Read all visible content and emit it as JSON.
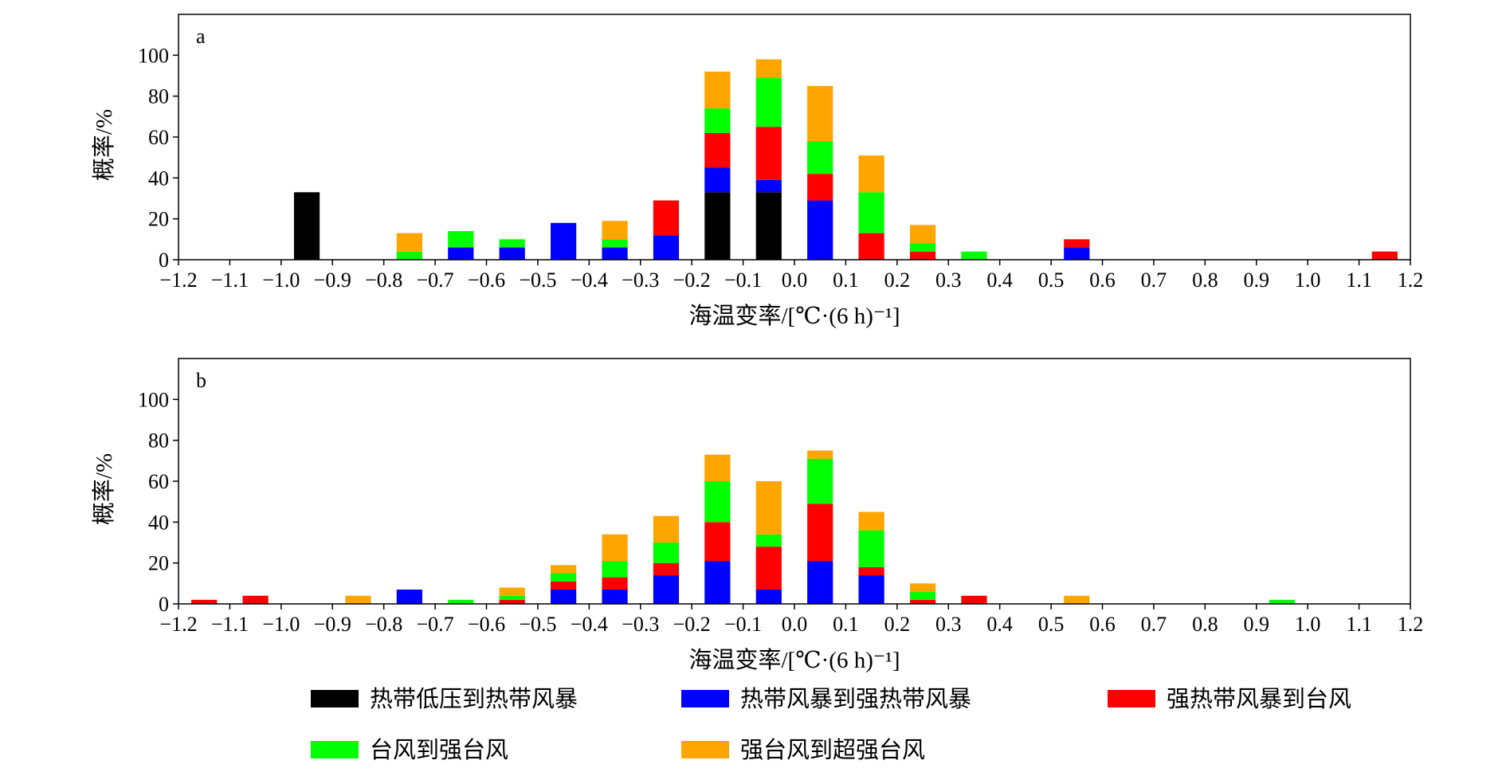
{
  "chart_data": [
    {
      "type": "bar",
      "stacked": true,
      "panel_label": "a",
      "xlabel": "海温变率/[℃·(6 h)⁻¹]",
      "ylabel": "概率/%",
      "xlim": [
        -1.2,
        1.2
      ],
      "ylim": [
        0,
        120
      ],
      "xticks": [
        "−1.2",
        "−1.1",
        "−1.0",
        "−0.9",
        "−0.8",
        "−0.7",
        "−0.6",
        "−0.5",
        "−0.4",
        "−0.3",
        "−0.2",
        "−0.1",
        "0.0",
        "0.1",
        "0.2",
        "0.3",
        "0.4",
        "0.5",
        "0.6",
        "0.7",
        "0.8",
        "0.9",
        "1.0",
        "1.1",
        "1.2"
      ],
      "yticks": [
        "0",
        "20",
        "40",
        "60",
        "80",
        "100"
      ],
      "x": [
        -1.15,
        -1.05,
        -0.95,
        -0.85,
        -0.75,
        -0.65,
        -0.55,
        -0.45,
        -0.35,
        -0.25,
        -0.15,
        -0.05,
        0.05,
        0.15,
        0.25,
        0.35,
        0.45,
        0.55,
        0.65,
        0.75,
        0.85,
        0.95,
        1.05,
        1.15
      ],
      "series": [
        {
          "name": "热带低压到热带风暴",
          "color": "#000000",
          "values": [
            0,
            0,
            33,
            0,
            0,
            0,
            0,
            0,
            0,
            0,
            33,
            33,
            0,
            0,
            0,
            0,
            0,
            0,
            0,
            0,
            0,
            0,
            0,
            0
          ]
        },
        {
          "name": "热带风暴到强热带风暴",
          "color": "#0000ff",
          "values": [
            0,
            0,
            0,
            0,
            0,
            6,
            6,
            18,
            6,
            12,
            12,
            6,
            29,
            0,
            0,
            0,
            0,
            6,
            0,
            0,
            0,
            0,
            0,
            0
          ]
        },
        {
          "name": "强热带风暴到台风",
          "color": "#ff0000",
          "values": [
            0,
            0,
            0,
            0,
            0,
            0,
            0,
            0,
            0,
            17,
            17,
            26,
            13,
            13,
            4,
            0,
            0,
            4,
            0,
            0,
            0,
            0,
            0,
            4
          ]
        },
        {
          "name": "台风到强台风",
          "color": "#00ff00",
          "values": [
            0,
            0,
            0,
            0,
            4,
            8,
            4,
            0,
            4,
            0,
            12,
            24,
            16,
            20,
            4,
            4,
            0,
            0,
            0,
            0,
            0,
            0,
            0,
            0
          ]
        },
        {
          "name": "强台风到超强台风",
          "color": "#ffa500",
          "values": [
            0,
            0,
            0,
            0,
            9,
            0,
            0,
            0,
            9,
            0,
            18,
            9,
            27,
            18,
            9,
            0,
            0,
            0,
            0,
            0,
            0,
            0,
            0,
            0
          ]
        }
      ]
    },
    {
      "type": "bar",
      "stacked": true,
      "panel_label": "b",
      "xlabel": "海温变率/[℃·(6 h)⁻¹]",
      "ylabel": "概率/%",
      "xlim": [
        -1.2,
        1.2
      ],
      "ylim": [
        0,
        120
      ],
      "xticks": [
        "−1.2",
        "−1.1",
        "−1.0",
        "−0.9",
        "−0.8",
        "−0.7",
        "−0.6",
        "−0.5",
        "−0.4",
        "−0.3",
        "−0.2",
        "−0.1",
        "0.0",
        "0.1",
        "0.2",
        "0.3",
        "0.4",
        "0.5",
        "0.6",
        "0.7",
        "0.8",
        "0.9",
        "1.0",
        "1.1",
        "1.2"
      ],
      "yticks": [
        "0",
        "20",
        "40",
        "60",
        "80",
        "100"
      ],
      "x": [
        -1.15,
        -1.05,
        -0.95,
        -0.85,
        -0.75,
        -0.65,
        -0.55,
        -0.45,
        -0.35,
        -0.25,
        -0.15,
        -0.05,
        0.05,
        0.15,
        0.25,
        0.35,
        0.45,
        0.55,
        0.65,
        0.75,
        0.85,
        0.95,
        1.05,
        1.15
      ],
      "series": [
        {
          "name": "热带低压到热带风暴",
          "color": "#000000",
          "values": [
            0,
            0,
            0,
            0,
            0,
            0,
            0,
            0,
            0,
            0,
            0,
            0,
            0,
            0,
            0,
            0,
            0,
            0,
            0,
            0,
            0,
            0,
            0,
            0
          ]
        },
        {
          "name": "热带风暴到强热带风暴",
          "color": "#0000ff",
          "values": [
            0,
            0,
            0,
            0,
            7,
            0,
            0,
            7,
            7,
            14,
            21,
            7,
            21,
            14,
            0,
            0,
            0,
            0,
            0,
            0,
            0,
            0,
            0,
            0
          ]
        },
        {
          "name": "强热带风暴到台风",
          "color": "#ff0000",
          "values": [
            2,
            4,
            0,
            0,
            0,
            0,
            2,
            4,
            6,
            6,
            19,
            21,
            28,
            4,
            2,
            4,
            0,
            0,
            0,
            0,
            0,
            0,
            0,
            0
          ]
        },
        {
          "name": "台风到强台风",
          "color": "#00ff00",
          "values": [
            0,
            0,
            0,
            0,
            0,
            2,
            2,
            4,
            8,
            10,
            20,
            6,
            22,
            18,
            4,
            0,
            0,
            0,
            0,
            0,
            0,
            2,
            0,
            0
          ]
        },
        {
          "name": "强台风到超强台风",
          "color": "#ffa500",
          "values": [
            0,
            0,
            0,
            4,
            0,
            0,
            4,
            4,
            13,
            13,
            13,
            26,
            4,
            9,
            4,
            0,
            0,
            4,
            0,
            0,
            0,
            0,
            0,
            0
          ]
        }
      ]
    }
  ],
  "legend": {
    "placement": "bottom",
    "items": [
      {
        "label": "热带低压到热带风暴",
        "color": "#000000"
      },
      {
        "label": "热带风暴到强热带风暴",
        "color": "#0000ff"
      },
      {
        "label": "强热带风暴到台风",
        "color": "#ff0000"
      },
      {
        "label": "台风到强台风",
        "color": "#00ff00"
      },
      {
        "label": "强台风到超强台风",
        "color": "#ffa500"
      }
    ]
  }
}
